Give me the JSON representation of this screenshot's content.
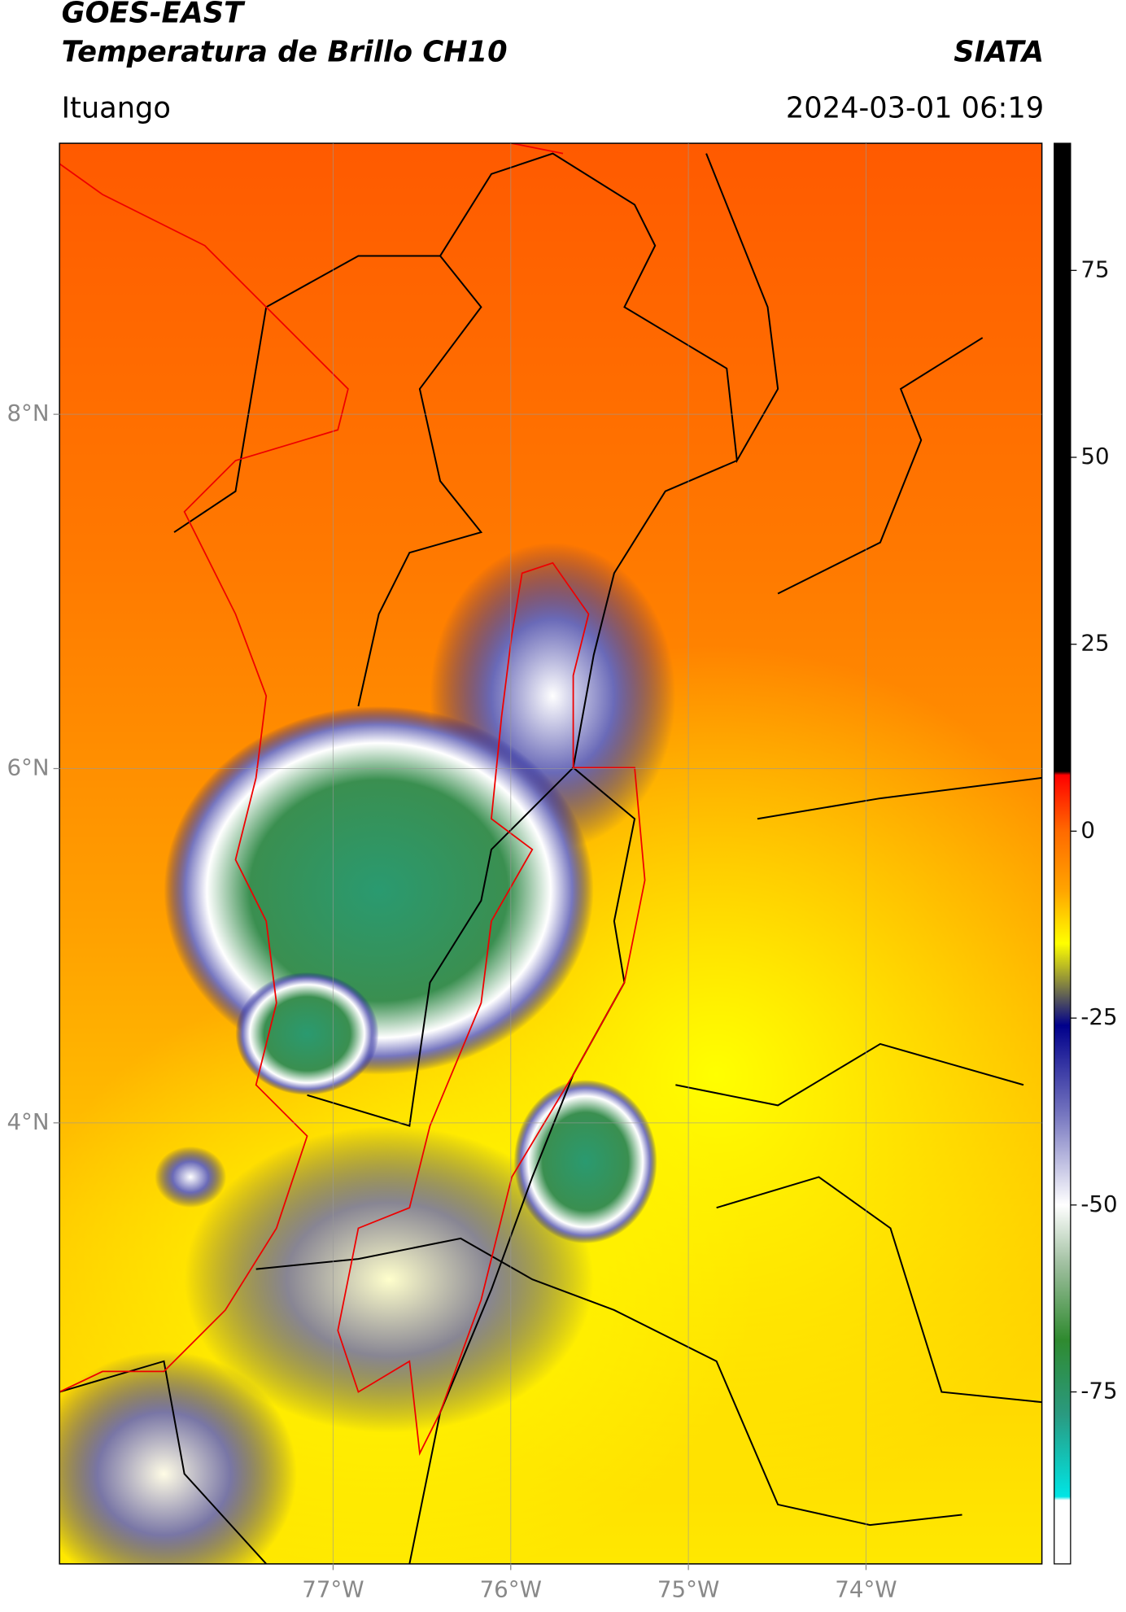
{
  "header": {
    "title": "GOES-EAST",
    "subtitle": "Temperatura de Brillo CH10",
    "agency": "SIATA",
    "region": "Ituango",
    "datetime": "2024-03-01 06:19"
  },
  "map": {
    "xlim": [
      -78.54,
      -73.01
    ],
    "ylim": [
      1.51,
      9.53
    ],
    "xticks": [
      {
        "value": -77,
        "label": "77°W"
      },
      {
        "value": -76,
        "label": "76°W"
      },
      {
        "value": -75,
        "label": "75°W"
      },
      {
        "value": -74,
        "label": "74°W"
      }
    ],
    "yticks": [
      {
        "value": 8,
        "label": "8°N"
      },
      {
        "value": 6,
        "label": "6°N"
      },
      {
        "value": 4,
        "label": "4°N"
      }
    ],
    "grid": true
  },
  "colorbar": {
    "lim": [
      -98,
      92
    ],
    "ticks": [
      75,
      50,
      25,
      0,
      -25,
      -50,
      -75
    ],
    "colors": [
      {
        "value": 92,
        "color": "#000000"
      },
      {
        "value": 8,
        "color": "#000000"
      },
      {
        "value": 7.5,
        "color": "#ff0000"
      },
      {
        "value": 0,
        "color": "#ff6a00"
      },
      {
        "value": -8,
        "color": "#ffa500"
      },
      {
        "value": -15,
        "color": "#ffff00"
      },
      {
        "value": -20,
        "color": "#8f8f3a"
      },
      {
        "value": -26,
        "color": "#00008b"
      },
      {
        "value": -38,
        "color": "#7777c0"
      },
      {
        "value": -50,
        "color": "#ffffff"
      },
      {
        "value": -58,
        "color": "#9fbf9f"
      },
      {
        "value": -68,
        "color": "#2f8a2f"
      },
      {
        "value": -78,
        "color": "#2a9a80"
      },
      {
        "value": -89,
        "color": "#00e5e5"
      },
      {
        "value": -89.5,
        "color": "#ffffff"
      },
      {
        "value": -98,
        "color": "#ffffff"
      }
    ]
  }
}
